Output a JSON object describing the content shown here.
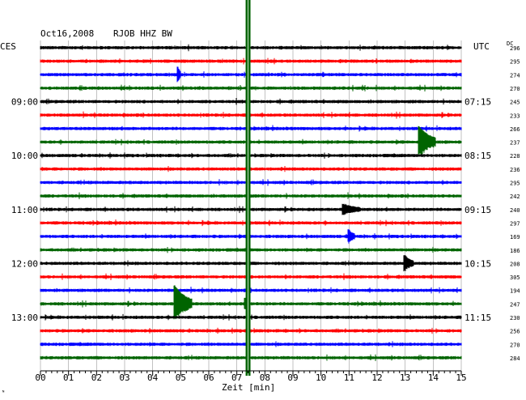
{
  "header": {
    "date": "Oct16,2008",
    "station": "RJOB HHZ BW",
    "left_tz": "CES",
    "right_tz": "UTC",
    "dc_label": "DC"
  },
  "footer": {
    "xlabel": "Zeit [min]",
    "corner_mark": "ᴺ"
  },
  "chart_data": {
    "type": "helicorder",
    "xlabel": "Zeit [min]",
    "xlim": [
      0,
      15
    ],
    "x_ticks": [
      "00",
      "01",
      "02",
      "03",
      "04",
      "05",
      "06",
      "07",
      "08",
      "09",
      "10",
      "11",
      "12",
      "13",
      "14",
      "15"
    ],
    "trace_colors": [
      "#000000",
      "#ff0000",
      "#0000ff",
      "#006400"
    ],
    "left_hour_labels": [
      "09:00",
      "10:00",
      "11:00",
      "12:00",
      "13:00"
    ],
    "right_hour_labels": [
      "07:15",
      "08:15",
      "09:15",
      "10:15",
      "11:15"
    ],
    "dc_offsets": [
      "296",
      "295",
      "274",
      "270",
      "245",
      "233",
      "266",
      "237",
      "228",
      "236",
      "295",
      "242",
      "240",
      "297",
      "169",
      "186",
      "208",
      "305",
      "194",
      "247",
      "230",
      "256",
      "270",
      "284"
    ],
    "events": [
      {
        "trace": 2,
        "minute": 4.9,
        "amplitude": 1.4,
        "duration": 0.1
      },
      {
        "trace": 7,
        "minute": 13.5,
        "amplitude": 3.0,
        "duration": 0.6
      },
      {
        "trace": 12,
        "minute": 10.8,
        "amplitude": 0.9,
        "duration": 0.6
      },
      {
        "trace": 14,
        "minute": 11.0,
        "amplitude": 1.2,
        "duration": 0.2
      },
      {
        "trace": 16,
        "minute": 13.0,
        "amplitude": 1.4,
        "duration": 0.3
      },
      {
        "trace": 19,
        "minute": 4.8,
        "amplitude": 3.5,
        "duration": 0.6
      },
      {
        "trace": 19,
        "minute": 7.3,
        "amplitude": 1.0,
        "duration": 0.2
      }
    ],
    "highlight_band_minute": 7.4
  }
}
